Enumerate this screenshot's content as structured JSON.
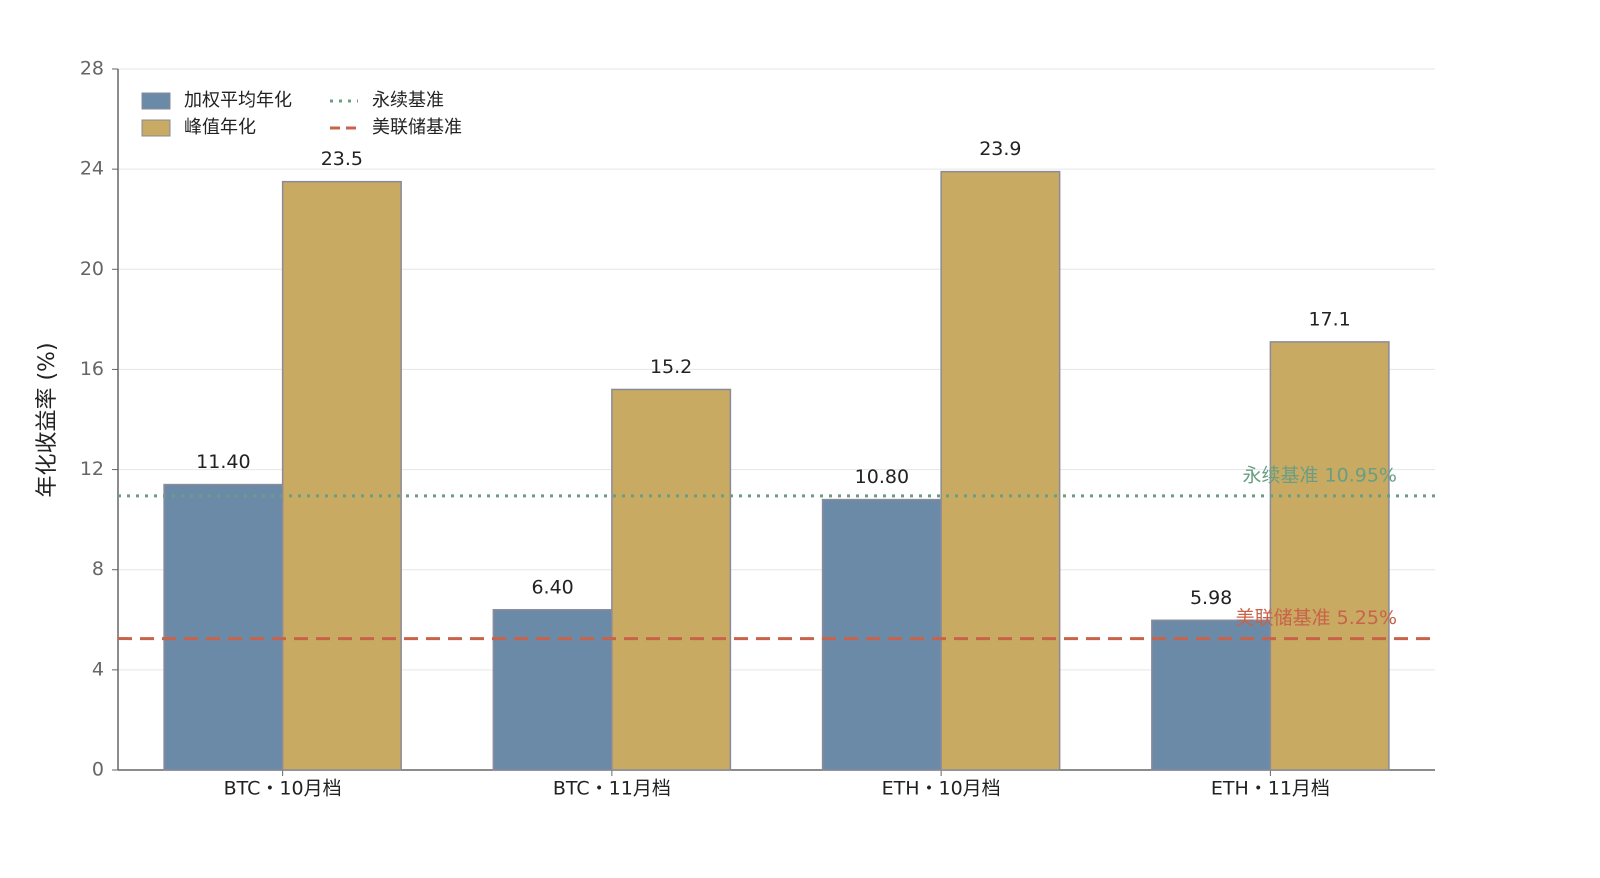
{
  "chart_data": {
    "type": "bar",
    "ylabel": "年化收益率 (%)",
    "categories": [
      "BTC・10月档",
      "BTC・11月档",
      "ETH・10月档",
      "ETH・11月档"
    ],
    "series": [
      {
        "name": "加权平均年化",
        "color": "#6b8aa8",
        "values": [
          11.4,
          6.4,
          10.8,
          5.98
        ],
        "value_labels": [
          "11.40",
          "6.40",
          "10.80",
          "5.98"
        ]
      },
      {
        "name": "峰值年化",
        "color": "#c8aa63",
        "values": [
          23.5,
          15.2,
          23.9,
          17.1
        ]
      }
    ],
    "reference_lines": [
      {
        "name": "永续基准",
        "value": 10.95,
        "label": "永续基准 10.95%",
        "color": "#6a9e82",
        "style": "dotted"
      },
      {
        "name": "美联储基准",
        "value": 5.25,
        "label": "美联储基准 5.25%",
        "color": "#c8634a",
        "style": "dashed"
      }
    ],
    "ylim": [
      0,
      28
    ],
    "yticks": [
      0,
      4,
      8,
      12,
      16,
      20,
      24,
      28
    ],
    "grid": true,
    "legend": "upper left"
  }
}
